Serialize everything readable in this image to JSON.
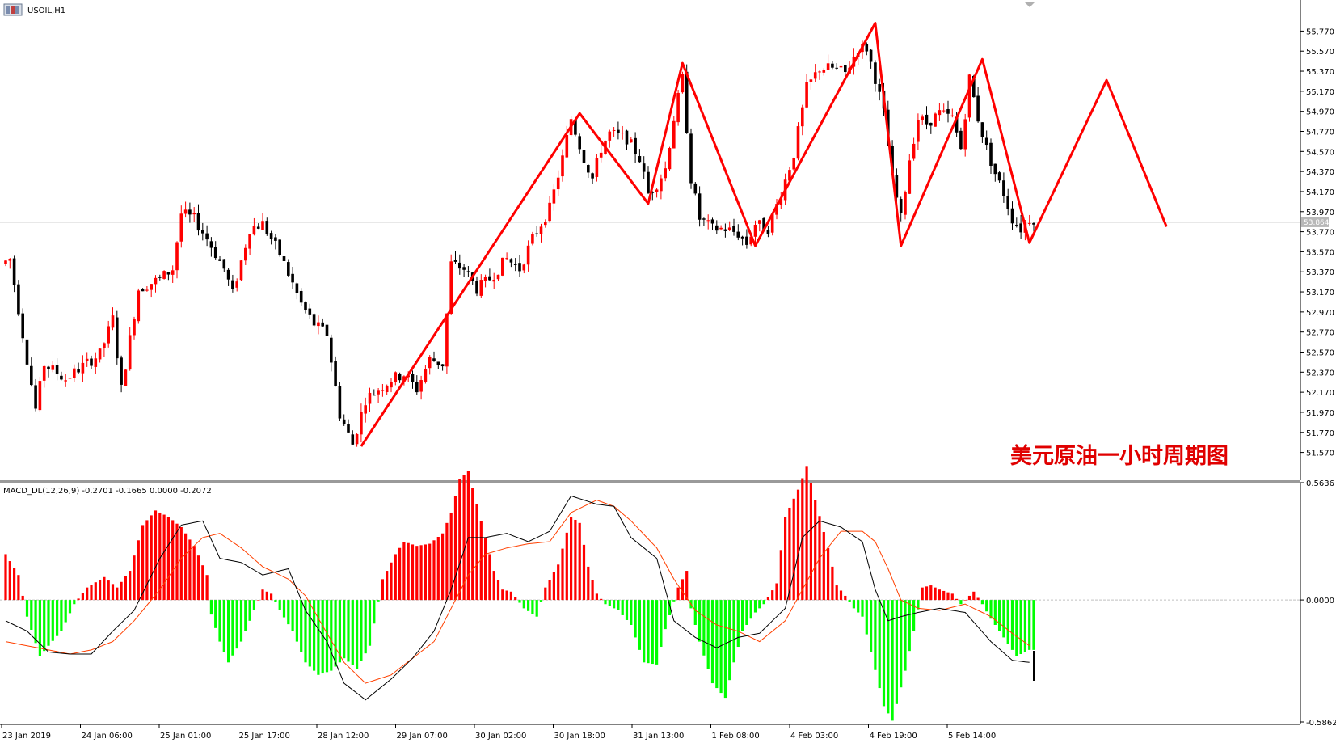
{
  "window": {
    "symbol_title": "USOIL,H1",
    "icon": "chart-window-icon"
  },
  "annotation": "美元原油一小时周期图",
  "indicator_label": "MACD_DL(12,26,9) -0.2701 -0.1665 0.0000 -0.2072",
  "current_price": "53.864",
  "colors": {
    "bull": "#ff0000",
    "bear": "#000000",
    "zigzag": "#ff0000",
    "hist_pos": "#ff0000",
    "hist_neg": "#00ff00",
    "macd_line": "#000000",
    "signal_line": "#ff4000",
    "grid": "#c0c0c0"
  },
  "chart_data": [
    {
      "type": "candlestick",
      "title": "USOIL,H1",
      "ylim": [
        51.47,
        55.87
      ],
      "y_ticks": [
        "55.770",
        "55.570",
        "55.370",
        "55.170",
        "54.970",
        "54.770",
        "54.570",
        "54.370",
        "54.170",
        "53.970",
        "53.770",
        "53.570",
        "53.370",
        "53.170",
        "52.970",
        "52.770",
        "52.570",
        "52.370",
        "52.170",
        "51.970",
        "51.770",
        "51.570"
      ],
      "current_price": 53.864,
      "x_ticks": [
        "23 Jan 2019",
        "24 Jan 06:00",
        "25 Jan 01:00",
        "25 Jan 17:00",
        "28 Jan 12:00",
        "29 Jan 07:00",
        "30 Jan 02:00",
        "30 Jan 18:00",
        "31 Jan 13:00",
        "1 Feb 08:00",
        "4 Feb 03:00",
        "4 Feb 19:00",
        "5 Feb 14:00"
      ],
      "anchors": [
        [
          0,
          53.45
        ],
        [
          2,
          53.5
        ],
        [
          5,
          52.75
        ],
        [
          8,
          52.0
        ],
        [
          10,
          52.45
        ],
        [
          15,
          52.3
        ],
        [
          18,
          52.4
        ],
        [
          23,
          52.55
        ],
        [
          26,
          52.9
        ],
        [
          28,
          52.2
        ],
        [
          32,
          53.2
        ],
        [
          37,
          53.3
        ],
        [
          40,
          53.4
        ],
        [
          42,
          53.95
        ],
        [
          45,
          53.9
        ],
        [
          48,
          53.7
        ],
        [
          52,
          53.4
        ],
        [
          54,
          53.15
        ],
        [
          58,
          53.8
        ],
        [
          61,
          53.85
        ],
        [
          65,
          53.55
        ],
        [
          70,
          53.05
        ],
        [
          73,
          52.85
        ],
        [
          76,
          52.75
        ],
        [
          79,
          51.95
        ],
        [
          82,
          51.65
        ],
        [
          85,
          52.1
        ],
        [
          88,
          52.2
        ],
        [
          91,
          52.3
        ],
        [
          94,
          52.35
        ],
        [
          97,
          52.2
        ],
        [
          100,
          52.5
        ],
        [
          103,
          52.45
        ],
        [
          105,
          53.45
        ],
        [
          108,
          53.4
        ],
        [
          111,
          53.2
        ],
        [
          114,
          53.3
        ],
        [
          118,
          53.5
        ],
        [
          121,
          53.4
        ],
        [
          124,
          53.7
        ],
        [
          128,
          54.0
        ],
        [
          131,
          54.5
        ],
        [
          133,
          54.9
        ],
        [
          136,
          54.5
        ],
        [
          138,
          54.3
        ],
        [
          140,
          54.6
        ],
        [
          142,
          54.75
        ],
        [
          146,
          54.7
        ],
        [
          149,
          54.5
        ],
        [
          151,
          54.15
        ],
        [
          153,
          54.25
        ],
        [
          155,
          54.4
        ],
        [
          157,
          54.9
        ],
        [
          159,
          55.3
        ],
        [
          161,
          54.3
        ],
        [
          163,
          53.9
        ],
        [
          166,
          53.8
        ],
        [
          169,
          53.8
        ],
        [
          172,
          53.75
        ],
        [
          174,
          53.65
        ],
        [
          176,
          53.85
        ],
        [
          179,
          53.8
        ],
        [
          182,
          54.15
        ],
        [
          185,
          54.55
        ],
        [
          188,
          55.2
        ],
        [
          191,
          55.4
        ],
        [
          194,
          55.4
        ],
        [
          197,
          55.35
        ],
        [
          200,
          55.6
        ],
        [
          202,
          55.6
        ],
        [
          204,
          55.3
        ],
        [
          206,
          54.95
        ],
        [
          208,
          54.3
        ],
        [
          210,
          53.9
        ],
        [
          212,
          54.5
        ],
        [
          214,
          54.9
        ],
        [
          216,
          54.85
        ],
        [
          219,
          54.95
        ],
        [
          222,
          54.9
        ],
        [
          224,
          54.6
        ],
        [
          226,
          55.3
        ],
        [
          228,
          54.9
        ],
        [
          230,
          54.6
        ],
        [
          232,
          54.35
        ],
        [
          234,
          54.15
        ],
        [
          236,
          53.9
        ],
        [
          238,
          53.8
        ],
        [
          240,
          53.9
        ]
      ],
      "zigzag": [
        [
          83,
          51.63
        ],
        [
          134,
          54.95
        ],
        [
          150,
          54.05
        ],
        [
          158,
          55.45
        ],
        [
          175,
          53.63
        ],
        [
          203,
          55.85
        ],
        [
          209,
          53.63
        ],
        [
          228,
          55.49
        ],
        [
          239,
          53.66
        ],
        [
          257,
          55.28
        ],
        [
          271,
          53.82
        ]
      ],
      "subtitle": "美元原油一小时周期图"
    },
    {
      "type": "macd",
      "title": "MACD_DL(12,26,9)",
      "params": [
        12,
        26,
        9
      ],
      "values_shown": [
        -0.2701,
        -0.1665,
        0.0,
        -0.2072
      ],
      "ylim": [
        -0.5862,
        0.5636
      ],
      "y_ticks": [
        "0.5636",
        "0.0000",
        "-0.5862"
      ],
      "histogram": [
        [
          0,
          0.22
        ],
        [
          3,
          0.12
        ],
        [
          5,
          -0.08
        ],
        [
          8,
          -0.27
        ],
        [
          10,
          -0.22
        ],
        [
          13,
          -0.15
        ],
        [
          16,
          -0.02
        ],
        [
          19,
          0.06
        ],
        [
          23,
          0.11
        ],
        [
          26,
          0.06
        ],
        [
          29,
          0.14
        ],
        [
          32,
          0.36
        ],
        [
          35,
          0.43
        ],
        [
          38,
          0.4
        ],
        [
          41,
          0.35
        ],
        [
          44,
          0.26
        ],
        [
          47,
          0.12
        ],
        [
          48,
          -0.07
        ],
        [
          50,
          -0.2
        ],
        [
          52,
          -0.3
        ],
        [
          55,
          -0.2
        ],
        [
          58,
          -0.05
        ],
        [
          60,
          0.05
        ],
        [
          62,
          0.03
        ],
        [
          64,
          -0.05
        ],
        [
          67,
          -0.15
        ],
        [
          70,
          -0.3
        ],
        [
          73,
          -0.36
        ],
        [
          76,
          -0.34
        ],
        [
          79,
          -0.28
        ],
        [
          82,
          -0.33
        ],
        [
          85,
          -0.22
        ],
        [
          88,
          0.1
        ],
        [
          91,
          0.22
        ],
        [
          93,
          0.28
        ],
        [
          96,
          0.26
        ],
        [
          99,
          0.27
        ],
        [
          102,
          0.32
        ],
        [
          104,
          0.42
        ],
        [
          106,
          0.58
        ],
        [
          108,
          0.62
        ],
        [
          110,
          0.46
        ],
        [
          112,
          0.3
        ],
        [
          114,
          0.14
        ],
        [
          116,
          0.05
        ],
        [
          118,
          0.04
        ],
        [
          121,
          -0.04
        ],
        [
          124,
          -0.08
        ],
        [
          126,
          0.06
        ],
        [
          129,
          0.17
        ],
        [
          132,
          0.4
        ],
        [
          134,
          0.37
        ],
        [
          136,
          0.16
        ],
        [
          138,
          0.03
        ],
        [
          140,
          -0.02
        ],
        [
          143,
          -0.05
        ],
        [
          146,
          -0.12
        ],
        [
          149,
          -0.3
        ],
        [
          152,
          -0.31
        ],
        [
          154,
          -0.14
        ],
        [
          157,
          0.06
        ],
        [
          159,
          0.14
        ],
        [
          160,
          -0.04
        ],
        [
          162,
          -0.2
        ],
        [
          165,
          -0.4
        ],
        [
          168,
          -0.47
        ],
        [
          170,
          -0.3
        ],
        [
          172,
          -0.15
        ],
        [
          175,
          -0.06
        ],
        [
          177,
          -0.02
        ],
        [
          180,
          0.08
        ],
        [
          182,
          0.4
        ],
        [
          185,
          0.53
        ],
        [
          187,
          0.64
        ],
        [
          189,
          0.48
        ],
        [
          192,
          0.25
        ],
        [
          194,
          0.07
        ],
        [
          196,
          0.02
        ],
        [
          198,
          -0.04
        ],
        [
          200,
          -0.08
        ],
        [
          202,
          -0.25
        ],
        [
          205,
          -0.51
        ],
        [
          207,
          -0.58
        ],
        [
          210,
          -0.34
        ],
        [
          212,
          -0.15
        ],
        [
          214,
          0.06
        ],
        [
          216,
          0.07
        ],
        [
          218,
          0.05
        ],
        [
          221,
          0.03
        ],
        [
          223,
          -0.02
        ],
        [
          225,
          0.02
        ],
        [
          226,
          0.04
        ],
        [
          228,
          -0.02
        ],
        [
          230,
          -0.09
        ],
        [
          233,
          -0.18
        ],
        [
          236,
          -0.27
        ],
        [
          239,
          -0.24
        ]
      ],
      "macd": [
        [
          0,
          -0.1
        ],
        [
          5,
          -0.15
        ],
        [
          10,
          -0.25
        ],
        [
          15,
          -0.26
        ],
        [
          20,
          -0.26
        ],
        [
          25,
          -0.15
        ],
        [
          30,
          -0.05
        ],
        [
          36,
          0.2
        ],
        [
          41,
          0.36
        ],
        [
          46,
          0.38
        ],
        [
          50,
          0.2
        ],
        [
          55,
          0.18
        ],
        [
          60,
          0.12
        ],
        [
          66,
          0.15
        ],
        [
          70,
          -0.05
        ],
        [
          75,
          -0.2
        ],
        [
          79,
          -0.4
        ],
        [
          84,
          -0.48
        ],
        [
          90,
          -0.38
        ],
        [
          95,
          -0.28
        ],
        [
          100,
          -0.15
        ],
        [
          104,
          0.05
        ],
        [
          108,
          0.3
        ],
        [
          112,
          0.3
        ],
        [
          117,
          0.32
        ],
        [
          122,
          0.28
        ],
        [
          127,
          0.33
        ],
        [
          132,
          0.5
        ],
        [
          138,
          0.46
        ],
        [
          142,
          0.45
        ],
        [
          146,
          0.3
        ],
        [
          152,
          0.2
        ],
        [
          156,
          -0.1
        ],
        [
          161,
          -0.18
        ],
        [
          166,
          -0.23
        ],
        [
          171,
          -0.18
        ],
        [
          176,
          -0.16
        ],
        [
          182,
          -0.04
        ],
        [
          186,
          0.3
        ],
        [
          190,
          0.38
        ],
        [
          195,
          0.35
        ],
        [
          200,
          0.28
        ],
        [
          203,
          0.05
        ],
        [
          206,
          -0.1
        ],
        [
          209,
          -0.08
        ],
        [
          213,
          -0.06
        ],
        [
          218,
          -0.04
        ],
        [
          224,
          -0.06
        ],
        [
          230,
          -0.2
        ],
        [
          235,
          -0.29
        ],
        [
          239,
          -0.3
        ]
      ],
      "signal": [
        [
          0,
          -0.2
        ],
        [
          5,
          -0.22
        ],
        [
          10,
          -0.24
        ],
        [
          15,
          -0.26
        ],
        [
          20,
          -0.24
        ],
        [
          25,
          -0.2
        ],
        [
          30,
          -0.1
        ],
        [
          36,
          0.05
        ],
        [
          41,
          0.2
        ],
        [
          46,
          0.3
        ],
        [
          50,
          0.32
        ],
        [
          55,
          0.25
        ],
        [
          60,
          0.16
        ],
        [
          66,
          0.1
        ],
        [
          70,
          0.02
        ],
        [
          75,
          -0.16
        ],
        [
          79,
          -0.3
        ],
        [
          84,
          -0.4
        ],
        [
          90,
          -0.36
        ],
        [
          95,
          -0.28
        ],
        [
          100,
          -0.2
        ],
        [
          104,
          -0.04
        ],
        [
          108,
          0.12
        ],
        [
          112,
          0.22
        ],
        [
          117,
          0.25
        ],
        [
          122,
          0.27
        ],
        [
          127,
          0.28
        ],
        [
          132,
          0.42
        ],
        [
          138,
          0.48
        ],
        [
          142,
          0.45
        ],
        [
          146,
          0.38
        ],
        [
          152,
          0.25
        ],
        [
          156,
          0.1
        ],
        [
          161,
          -0.05
        ],
        [
          166,
          -0.12
        ],
        [
          171,
          -0.15
        ],
        [
          176,
          -0.2
        ],
        [
          182,
          -0.1
        ],
        [
          186,
          0.05
        ],
        [
          190,
          0.2
        ],
        [
          195,
          0.33
        ],
        [
          200,
          0.33
        ],
        [
          203,
          0.28
        ],
        [
          206,
          0.15
        ],
        [
          209,
          0.0
        ],
        [
          213,
          -0.04
        ],
        [
          218,
          -0.05
        ],
        [
          224,
          -0.02
        ],
        [
          230,
          -0.08
        ],
        [
          235,
          -0.16
        ],
        [
          239,
          -0.22
        ]
      ]
    }
  ]
}
